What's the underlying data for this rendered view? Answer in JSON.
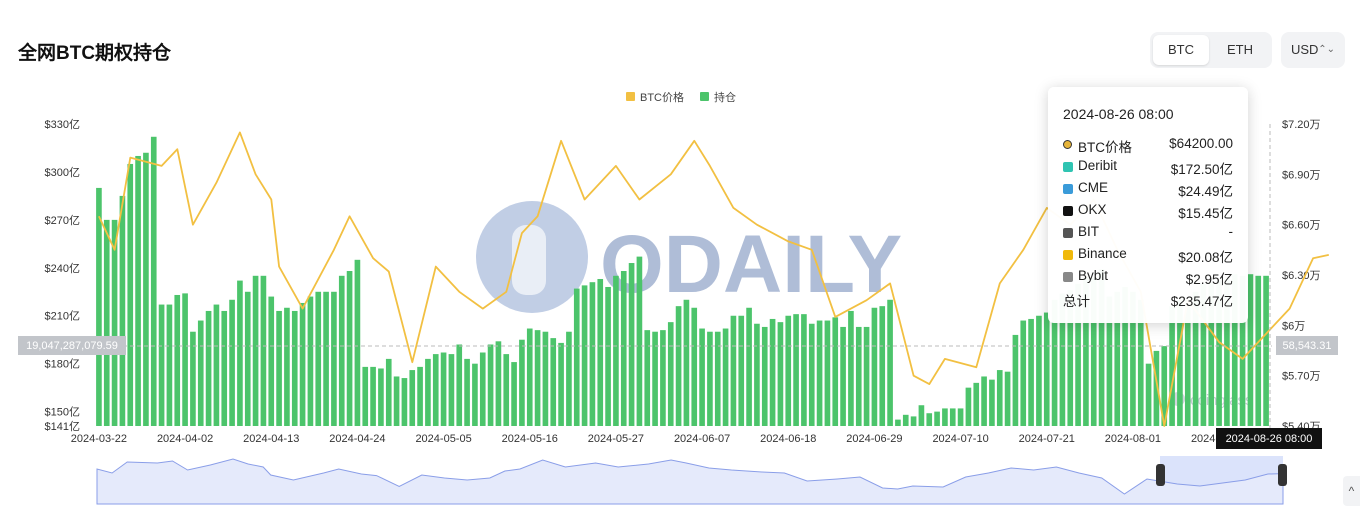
{
  "page": {
    "title": "全网BTC期权持仓"
  },
  "toggle": {
    "btc": "BTC",
    "eth": "ETH",
    "currency": "USD"
  },
  "crosshair": {
    "left_readout": "19,047,287,079.59",
    "right_readout": "58,543.31",
    "date_readout": "2024-08-26 08:00"
  },
  "tooltip": {
    "time": "2024-08-26 08:00",
    "rows": [
      {
        "name": "BTC价格",
        "value": "$64200.00",
        "icon": "price-dot-icon",
        "color": "#e6b43a"
      },
      {
        "name": "Deribit",
        "value": "$172.50亿",
        "icon": "deribit-icon",
        "color": "#2fc4b2"
      },
      {
        "name": "CME",
        "value": "$24.49亿",
        "icon": "cme-icon",
        "color": "#3a9bd9"
      },
      {
        "name": "OKX",
        "value": "$15.45亿",
        "icon": "okx-icon",
        "color": "#111111"
      },
      {
        "name": "BIT",
        "value": "-",
        "icon": "bit-icon",
        "color": "#555555"
      },
      {
        "name": "Binance",
        "value": "$20.08亿",
        "icon": "binance-icon",
        "color": "#f0b90b"
      },
      {
        "name": "Bybit",
        "value": "$2.95亿",
        "icon": "bybit-icon",
        "color": "#888888"
      },
      {
        "name": "总计",
        "value": "$235.47亿",
        "icon": "",
        "color": ""
      }
    ]
  },
  "watermark": {
    "brand": "ODAILY",
    "secondary": "coinglass"
  },
  "colors": {
    "bar": "#4cc46b",
    "line": "#f2c042",
    "navigator": "#dbe3fb",
    "navigator_line": "#8a9ee8"
  },
  "chart_data": {
    "type": "bar",
    "title": "全网BTC期权持仓",
    "legend": {
      "position": "top-center",
      "entries": [
        {
          "name": "BTC价格",
          "color": "#f2c042"
        },
        {
          "name": "持仓",
          "color": "#4cc46b"
        }
      ]
    },
    "x_ticks": [
      "2024-03-22",
      "2024-04-02",
      "2024-04-13",
      "2024-04-24",
      "2024-05-05",
      "2024-05-16",
      "2024-05-27",
      "2024-06-07",
      "2024-06-18",
      "2024-06-29",
      "2024-07-10",
      "2024-07-21",
      "2024-08-01",
      "2024-08-12"
    ],
    "y_left": {
      "ticks": [
        "$330亿",
        "$300亿",
        "$270亿",
        "$240亿",
        "$210亿",
        "$180亿",
        "$150亿",
        "$141亿"
      ],
      "values": [
        330,
        300,
        270,
        240,
        210,
        180,
        150,
        141
      ],
      "range": [
        141,
        330
      ],
      "unit": "亿 USD"
    },
    "y_right": {
      "ticks": [
        "$7.20万",
        "$6.90万",
        "$6.60万",
        "$6.30万",
        "$6万",
        "$5.70万",
        "$5.40万"
      ],
      "values": [
        72000,
        69000,
        66000,
        63000,
        60000,
        57000,
        54000
      ],
      "range": [
        54000,
        72000
      ]
    },
    "start_date": "2024-03-22",
    "series": [
      {
        "name": "持仓",
        "kind": "bar",
        "values": [
          290,
          270,
          270,
          285,
          305,
          310,
          312,
          322,
          217,
          217,
          223,
          224,
          200,
          207,
          213,
          217,
          213,
          220,
          232,
          225,
          235,
          235,
          222,
          213,
          215,
          213,
          218,
          222,
          225,
          225,
          225,
          235,
          238,
          245,
          178,
          178,
          177,
          183,
          172,
          171,
          176,
          178,
          183,
          186,
          187,
          186,
          192,
          183,
          180,
          187,
          192,
          194,
          186,
          181,
          195,
          202,
          201,
          200,
          196,
          193,
          200,
          227,
          229,
          231,
          233,
          228,
          235,
          238,
          243,
          247,
          201,
          200,
          201,
          206,
          216,
          220,
          215,
          202,
          200,
          200,
          202,
          210,
          210,
          215,
          205,
          203,
          208,
          206,
          210,
          211,
          211,
          205,
          207,
          207,
          209,
          203,
          213,
          203,
          203,
          215,
          216,
          220,
          145,
          148,
          147,
          154,
          149,
          150,
          152,
          152,
          152,
          165,
          168,
          172,
          170,
          176,
          175,
          198,
          207,
          208,
          210,
          212,
          220,
          224,
          226,
          230,
          234,
          234,
          239,
          222,
          225,
          228,
          225,
          220,
          180,
          188,
          191,
          216,
          220,
          220,
          225,
          230,
          231,
          232,
          233,
          236,
          235,
          236,
          235,
          235
        ]
      },
      {
        "name": "BTC价格",
        "kind": "line",
        "keypoints": [
          [
            "2024-03-22",
            66500
          ],
          [
            "2024-03-24",
            64500
          ],
          [
            "2024-03-26",
            70000
          ],
          [
            "2024-03-30",
            69500
          ],
          [
            "2024-04-01",
            70500
          ],
          [
            "2024-04-03",
            66000
          ],
          [
            "2024-04-06",
            68500
          ],
          [
            "2024-04-09",
            71500
          ],
          [
            "2024-04-11",
            69000
          ],
          [
            "2024-04-13",
            67500
          ],
          [
            "2024-04-14",
            63500
          ],
          [
            "2024-04-17",
            61000
          ],
          [
            "2024-04-21",
            64500
          ],
          [
            "2024-04-23",
            66500
          ],
          [
            "2024-04-26",
            64000
          ],
          [
            "2024-04-28",
            63200
          ],
          [
            "2024-05-01",
            57800
          ],
          [
            "2024-05-04",
            63500
          ],
          [
            "2024-05-07",
            62000
          ],
          [
            "2024-05-10",
            61000
          ],
          [
            "2024-05-13",
            62000
          ],
          [
            "2024-05-15",
            65500
          ],
          [
            "2024-05-17",
            66500
          ],
          [
            "2024-05-20",
            71000
          ],
          [
            "2024-05-23",
            67500
          ],
          [
            "2024-05-27",
            69500
          ],
          [
            "2024-05-30",
            67500
          ],
          [
            "2024-06-03",
            69000
          ],
          [
            "2024-06-06",
            71000
          ],
          [
            "2024-06-08",
            69500
          ],
          [
            "2024-06-11",
            67000
          ],
          [
            "2024-06-14",
            66000
          ],
          [
            "2024-06-18",
            65000
          ],
          [
            "2024-06-21",
            64500
          ],
          [
            "2024-06-24",
            60500
          ],
          [
            "2024-06-28",
            61500
          ],
          [
            "2024-07-01",
            62500
          ],
          [
            "2024-07-04",
            57000
          ],
          [
            "2024-07-06",
            56500
          ],
          [
            "2024-07-08",
            58000
          ],
          [
            "2024-07-12",
            57500
          ],
          [
            "2024-07-15",
            62500
          ],
          [
            "2024-07-18",
            64500
          ],
          [
            "2024-07-21",
            67000
          ],
          [
            "2024-07-24",
            66000
          ],
          [
            "2024-07-27",
            67500
          ],
          [
            "2024-07-30",
            64500
          ],
          [
            "2024-08-02",
            62000
          ],
          [
            "2024-08-05",
            54000
          ],
          [
            "2024-08-08",
            61500
          ],
          [
            "2024-08-12",
            59000
          ],
          [
            "2024-08-15",
            58000
          ],
          [
            "2024-08-18",
            59500
          ],
          [
            "2024-08-21",
            61000
          ],
          [
            "2024-08-24",
            64000
          ],
          [
            "2024-08-26",
            64200
          ]
        ]
      }
    ]
  }
}
